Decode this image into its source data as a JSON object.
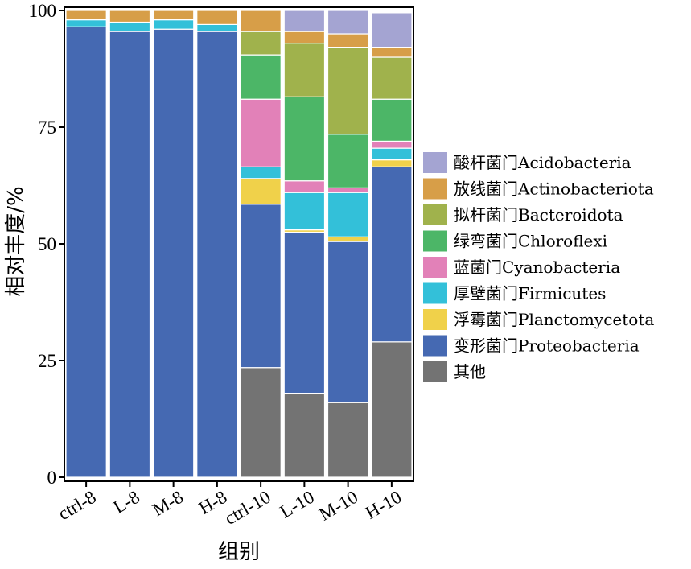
{
  "chart_data": {
    "type": "bar",
    "stacked": true,
    "xlabel": "组别",
    "ylabel": "相对丰度/%",
    "ylim": [
      0,
      100
    ],
    "yticks": [
      0,
      25,
      50,
      75,
      100
    ],
    "categories": [
      "ctrl-8",
      "L-8",
      "M-8",
      "H-8",
      "ctrl-10",
      "L-10",
      "M-10",
      "H-10"
    ],
    "series": [
      {
        "name": "其他",
        "color": "#737373",
        "values": [
          0,
          0,
          0,
          0,
          23.5,
          18,
          16,
          29
        ]
      },
      {
        "name": "变形菌门Proteobacteria",
        "color": "#4569b2",
        "values": [
          96.5,
          95.5,
          96,
          95.5,
          35,
          34.5,
          34.5,
          37.5
        ]
      },
      {
        "name": "浮霉菌门Planctomycetota",
        "color": "#f0d14a",
        "values": [
          0,
          0,
          0,
          0,
          5.5,
          0.5,
          1,
          1.5
        ]
      },
      {
        "name": "厚壁菌门Firmicutes",
        "color": "#33c0d9",
        "values": [
          1.5,
          2,
          2,
          1.5,
          2.5,
          8,
          9.5,
          2.5
        ]
      },
      {
        "name": "蓝菌门Cyanobacteria",
        "color": "#e281b8",
        "values": [
          0,
          0,
          0,
          0,
          14.5,
          2.5,
          1,
          1.5
        ]
      },
      {
        "name": "绿弯菌门Chloroflexi",
        "color": "#4cb667",
        "values": [
          0,
          0,
          0,
          0,
          9.5,
          18,
          11.5,
          9
        ]
      },
      {
        "name": "拟杆菌门Bacteroidota",
        "color": "#a0b24c",
        "values": [
          0,
          0,
          0,
          0,
          5,
          11.5,
          18.5,
          9
        ]
      },
      {
        "name": "放线菌门Actinobacteriota",
        "color": "#d79e48",
        "values": [
          2,
          2.5,
          2,
          3,
          4.5,
          2.5,
          3,
          2
        ]
      },
      {
        "name": "酸杆菌门Acidobacteria",
        "color": "#a4a4d2",
        "values": [
          0,
          0,
          0,
          0,
          0,
          4.5,
          5,
          7.5
        ]
      }
    ],
    "legend_order": [
      "酸杆菌门Acidobacteria",
      "放线菌门Actinobacteriota",
      "拟杆菌门Bacteroidota",
      "绿弯菌门Chloroflexi",
      "蓝菌门Cyanobacteria",
      "厚壁菌门Firmicutes",
      "浮霉菌门Planctomycetota",
      "变形菌门Proteobacteria",
      "其他"
    ],
    "legend_position": "right"
  }
}
